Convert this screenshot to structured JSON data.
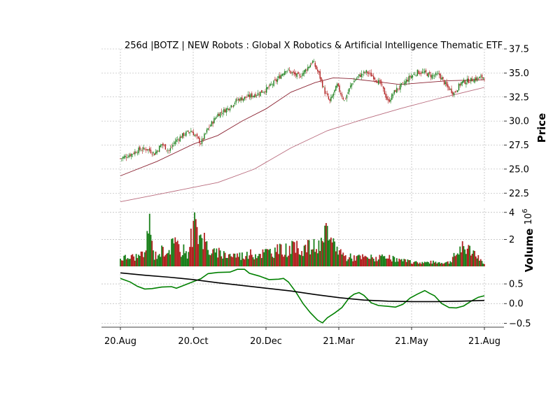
{
  "chart_data": [
    {
      "type": "candlestick",
      "title": "256d |BOTZ | NEW Robots : Global X Robotics & Artificial Intelligence Thematic ETF",
      "ylabel": "Price",
      "ylim": [
        21.5,
        37.5
      ],
      "yticks": [
        "22.5",
        "25.0",
        "27.5",
        "30.0",
        "32.5",
        "35.0",
        "37.5"
      ],
      "xticks": [
        "20.Aug",
        "20.Oct",
        "20.Dec",
        "21.Mar",
        "21.May",
        "21.Aug"
      ],
      "up_color": "#1a7f1a",
      "down_color": "#b22222",
      "close_anchors": [
        [
          0,
          26.1
        ],
        [
          8,
          26.5
        ],
        [
          15,
          27.0
        ],
        [
          22,
          27.1
        ],
        [
          28,
          26.6
        ],
        [
          34,
          27.6
        ],
        [
          40,
          26.9
        ],
        [
          45,
          27.9
        ],
        [
          52,
          28.6
        ],
        [
          58,
          29.0
        ],
        [
          62,
          28.4
        ],
        [
          66,
          27.7
        ],
        [
          72,
          29.2
        ],
        [
          80,
          30.7
        ],
        [
          88,
          31.3
        ],
        [
          96,
          32.2
        ],
        [
          104,
          32.5
        ],
        [
          112,
          32.8
        ],
        [
          120,
          33.3
        ],
        [
          128,
          34.2
        ],
        [
          136,
          35.4
        ],
        [
          142,
          34.9
        ],
        [
          147,
          34.6
        ],
        [
          152,
          35.3
        ],
        [
          158,
          36.2
        ],
        [
          163,
          34.9
        ],
        [
          168,
          33.0
        ],
        [
          172,
          32.0
        ],
        [
          178,
          33.7
        ],
        [
          184,
          32.1
        ],
        [
          190,
          33.9
        ],
        [
          196,
          34.7
        ],
        [
          202,
          35.1
        ],
        [
          208,
          34.6
        ],
        [
          214,
          33.8
        ],
        [
          220,
          32.0
        ],
        [
          226,
          33.2
        ],
        [
          232,
          33.8
        ],
        [
          238,
          34.6
        ],
        [
          244,
          35.1
        ],
        [
          250,
          35.0
        ],
        [
          256,
          34.7
        ],
        [
          262,
          34.8
        ],
        [
          268,
          33.6
        ],
        [
          274,
          32.9
        ],
        [
          280,
          34.0
        ],
        [
          286,
          34.2
        ],
        [
          292,
          34.4
        ],
        [
          299,
          34.6
        ]
      ],
      "moving_averages": [
        {
          "color": "#8b2332",
          "points": [
            [
              0,
              24.3
            ],
            [
              30,
              25.8
            ],
            [
              60,
              27.6
            ],
            [
              80,
              28.5
            ],
            [
              100,
              30.0
            ],
            [
              120,
              31.3
            ],
            [
              140,
              33.0
            ],
            [
              160,
              34.0
            ],
            [
              175,
              34.5
            ],
            [
              190,
              34.4
            ],
            [
              210,
              34.1
            ],
            [
              230,
              33.8
            ],
            [
              250,
              34.0
            ],
            [
              270,
              34.2
            ],
            [
              299,
              34.3
            ]
          ]
        },
        {
          "color": "#b86a7c",
          "points": [
            [
              0,
              21.6
            ],
            [
              40,
              22.6
            ],
            [
              80,
              23.6
            ],
            [
              110,
              25.0
            ],
            [
              140,
              27.2
            ],
            [
              170,
              29.0
            ],
            [
              200,
              30.2
            ],
            [
              230,
              31.3
            ],
            [
              260,
              32.3
            ],
            [
              299,
              33.5
            ]
          ]
        }
      ]
    },
    {
      "type": "bar",
      "ylabel": "Volume",
      "scale_label": "10",
      "scale_exponent": "6",
      "ylim": [
        0,
        4.3
      ],
      "yticks": [
        "2",
        "4"
      ],
      "volume_anchors": [
        [
          0,
          0.6
        ],
        [
          20,
          0.8
        ],
        [
          24,
          3.9
        ],
        [
          25,
          1.8
        ],
        [
          28,
          0.8
        ],
        [
          35,
          1.2
        ],
        [
          44,
          1.6
        ],
        [
          55,
          1.0
        ],
        [
          62,
          3.5
        ],
        [
          66,
          2.2
        ],
        [
          68,
          2.0
        ],
        [
          75,
          1.0
        ],
        [
          100,
          0.8
        ],
        [
          140,
          1.3
        ],
        [
          165,
          1.5
        ],
        [
          170,
          3.0
        ],
        [
          172,
          2.0
        ],
        [
          185,
          0.7
        ],
        [
          220,
          0.6
        ],
        [
          240,
          0.3
        ],
        [
          270,
          0.3
        ],
        [
          282,
          1.5
        ],
        [
          299,
          0.2
        ]
      ],
      "spikes": [
        [
          24,
          3.9
        ],
        [
          62,
          3.5
        ],
        [
          170,
          3.0
        ],
        [
          65,
          2.3
        ],
        [
          67,
          2.1
        ],
        [
          172,
          2.0
        ],
        [
          26,
          1.9
        ],
        [
          44,
          1.7
        ],
        [
          282,
          1.5
        ]
      ]
    },
    {
      "type": "line",
      "ylim": [
        -0.6,
        0.75
      ],
      "yticks": [
        "−0.5",
        "0.0",
        "0.5"
      ],
      "series": [
        {
          "color": "#008000",
          "points": [
            [
              0,
              0.64
            ],
            [
              8,
              0.55
            ],
            [
              14,
              0.44
            ],
            [
              20,
              0.37
            ],
            [
              26,
              0.38
            ],
            [
              34,
              0.42
            ],
            [
              42,
              0.43
            ],
            [
              46,
              0.39
            ],
            [
              52,
              0.46
            ],
            [
              60,
              0.56
            ],
            [
              66,
              0.63
            ],
            [
              72,
              0.76
            ],
            [
              80,
              0.79
            ],
            [
              90,
              0.8
            ],
            [
              96,
              0.87
            ],
            [
              102,
              0.87
            ],
            [
              106,
              0.77
            ],
            [
              114,
              0.7
            ],
            [
              122,
              0.61
            ],
            [
              130,
              0.62
            ],
            [
              134,
              0.64
            ],
            [
              138,
              0.55
            ],
            [
              144,
              0.3
            ],
            [
              150,
              0.0
            ],
            [
              156,
              -0.23
            ],
            [
              162,
              -0.42
            ],
            [
              166,
              -0.49
            ],
            [
              170,
              -0.36
            ],
            [
              176,
              -0.24
            ],
            [
              182,
              -0.1
            ],
            [
              188,
              0.15
            ],
            [
              192,
              0.24
            ],
            [
              196,
              0.28
            ],
            [
              200,
              0.21
            ],
            [
              206,
              0.02
            ],
            [
              212,
              -0.05
            ],
            [
              220,
              -0.07
            ],
            [
              226,
              -0.09
            ],
            [
              232,
              -0.02
            ],
            [
              238,
              0.14
            ],
            [
              244,
              0.24
            ],
            [
              250,
              0.33
            ],
            [
              254,
              0.26
            ],
            [
              258,
              0.2
            ],
            [
              264,
              0.0
            ],
            [
              270,
              -0.1
            ],
            [
              276,
              -0.11
            ],
            [
              282,
              -0.06
            ],
            [
              288,
              0.06
            ],
            [
              294,
              0.16
            ],
            [
              299,
              0.2
            ]
          ]
        },
        {
          "color": "#000000",
          "points": [
            [
              0,
              0.78
            ],
            [
              20,
              0.72
            ],
            [
              40,
              0.67
            ],
            [
              60,
              0.61
            ],
            [
              80,
              0.53
            ],
            [
              100,
              0.46
            ],
            [
              120,
              0.39
            ],
            [
              140,
              0.32
            ],
            [
              160,
              0.23
            ],
            [
              180,
              0.15
            ],
            [
              200,
              0.09
            ],
            [
              220,
              0.06
            ],
            [
              240,
              0.05
            ],
            [
              260,
              0.05
            ],
            [
              280,
              0.06
            ],
            [
              299,
              0.08
            ]
          ]
        }
      ]
    }
  ]
}
